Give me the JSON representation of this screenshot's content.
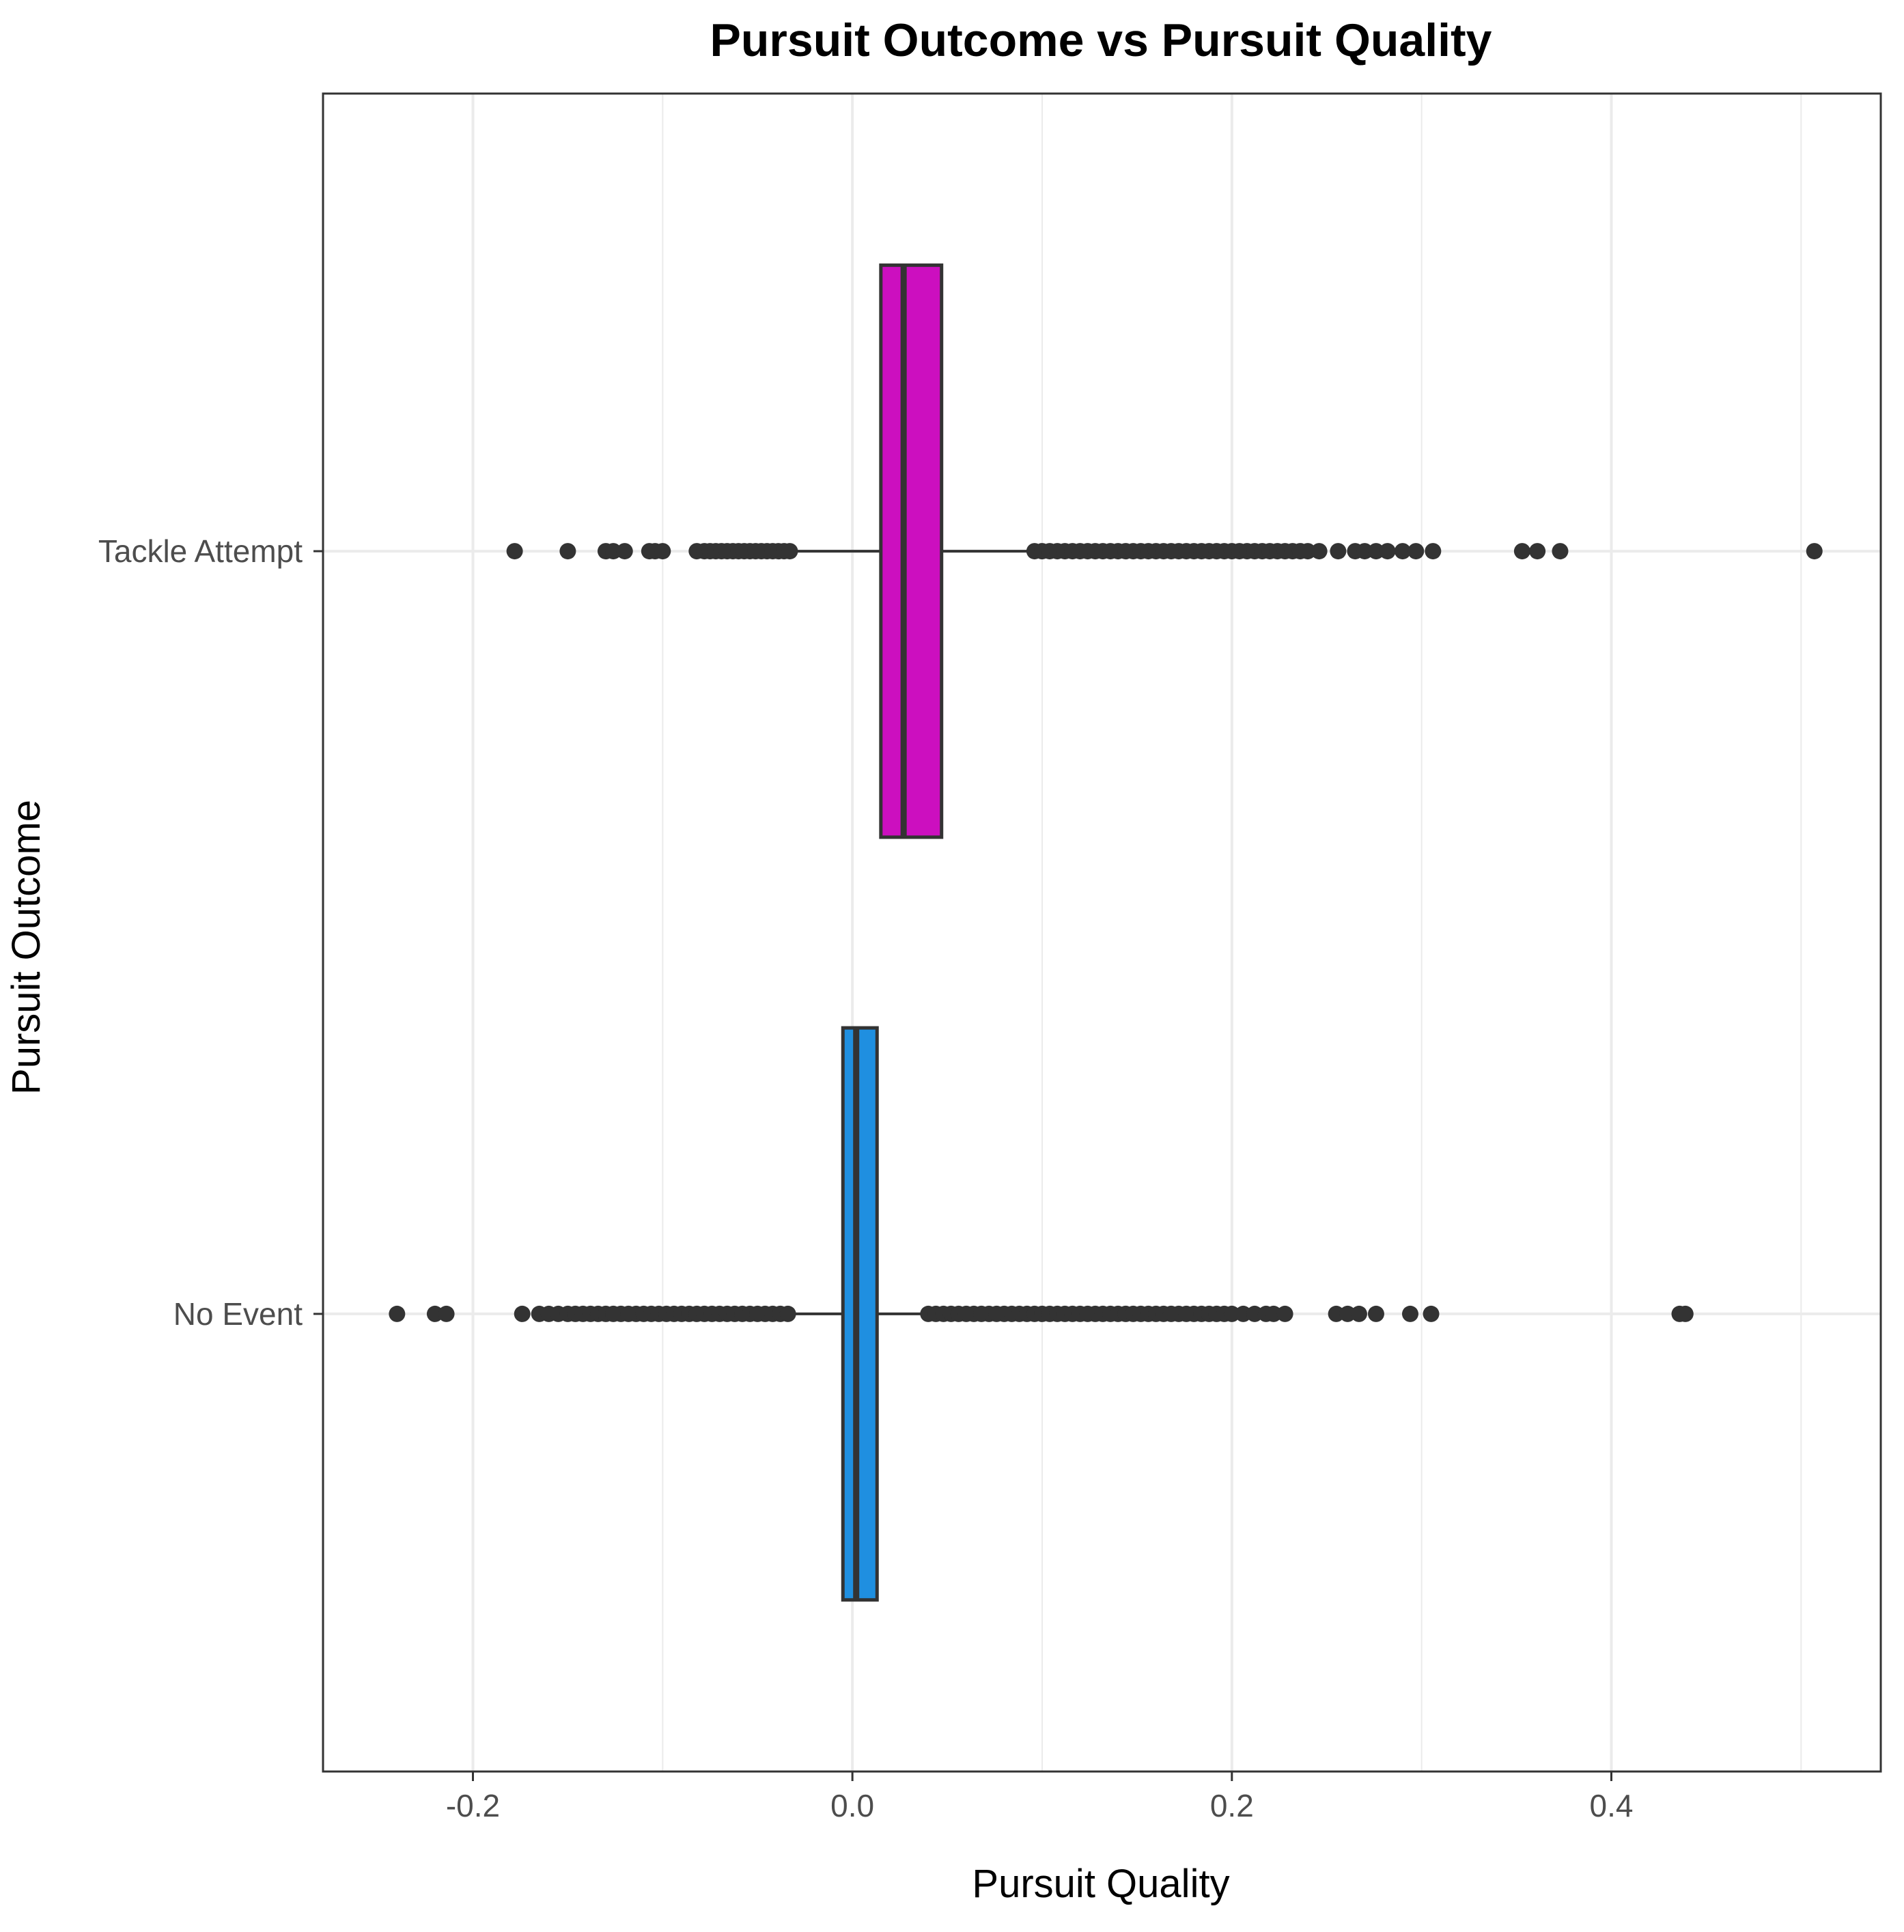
{
  "chart_data": {
    "type": "boxplot",
    "orientation": "horizontal",
    "title": "Pursuit Outcome vs Pursuit Quality",
    "xlabel": "Pursuit Quality",
    "ylabel": "Pursuit Outcome",
    "xlim": [
      -0.279,
      0.542
    ],
    "xticks": [
      -0.2,
      0.0,
      0.2,
      0.4
    ],
    "xtick_labels": [
      "-0.2",
      "0.0",
      "0.2",
      "0.4"
    ],
    "grid": true,
    "legend": "none",
    "categories": [
      "Tackle Attempt",
      "No Event"
    ],
    "series": [
      {
        "category": "Tackle Attempt",
        "color": "#CC0FBF",
        "q1": 0.015,
        "median": 0.027,
        "q3": 0.047,
        "whisker_low": -0.032,
        "whisker_high": 0.094,
        "outliers": [
          -0.178,
          -0.15,
          -0.13,
          -0.126,
          -0.12,
          -0.107,
          -0.104,
          -0.1,
          -0.082,
          -0.078,
          -0.075,
          -0.072,
          -0.069,
          -0.066,
          -0.063,
          -0.06,
          -0.057,
          -0.054,
          -0.051,
          -0.048,
          -0.045,
          -0.042,
          -0.039,
          -0.036,
          -0.033,
          0.096,
          0.1,
          0.104,
          0.108,
          0.112,
          0.116,
          0.12,
          0.124,
          0.128,
          0.132,
          0.136,
          0.14,
          0.144,
          0.148,
          0.152,
          0.156,
          0.16,
          0.164,
          0.168,
          0.172,
          0.176,
          0.18,
          0.184,
          0.188,
          0.192,
          0.196,
          0.2,
          0.204,
          0.208,
          0.212,
          0.216,
          0.22,
          0.224,
          0.228,
          0.232,
          0.236,
          0.24,
          0.246,
          0.256,
          0.265,
          0.27,
          0.276,
          0.282,
          0.29,
          0.297,
          0.306,
          0.353,
          0.361,
          0.373,
          0.507
        ]
      },
      {
        "category": "No Event",
        "color": "#1F8FE0",
        "q1": -0.005,
        "median": 0.002,
        "q3": 0.013,
        "whisker_low": -0.03,
        "whisker_high": 0.038,
        "outliers": [
          -0.24,
          -0.22,
          -0.214,
          -0.174,
          -0.165,
          -0.16,
          -0.155,
          -0.15,
          -0.146,
          -0.142,
          -0.138,
          -0.134,
          -0.13,
          -0.126,
          -0.122,
          -0.118,
          -0.114,
          -0.11,
          -0.106,
          -0.102,
          -0.098,
          -0.094,
          -0.09,
          -0.086,
          -0.082,
          -0.078,
          -0.074,
          -0.07,
          -0.066,
          -0.062,
          -0.058,
          -0.054,
          -0.05,
          -0.046,
          -0.042,
          -0.038,
          -0.034,
          0.04,
          0.044,
          0.048,
          0.052,
          0.056,
          0.06,
          0.064,
          0.068,
          0.072,
          0.076,
          0.08,
          0.084,
          0.088,
          0.092,
          0.096,
          0.1,
          0.104,
          0.108,
          0.112,
          0.116,
          0.12,
          0.124,
          0.128,
          0.132,
          0.136,
          0.14,
          0.144,
          0.148,
          0.152,
          0.156,
          0.16,
          0.164,
          0.168,
          0.172,
          0.176,
          0.18,
          0.184,
          0.188,
          0.192,
          0.196,
          0.2,
          0.206,
          0.212,
          0.218,
          0.222,
          0.228,
          0.255,
          0.261,
          0.267,
          0.276,
          0.294,
          0.305,
          0.436,
          0.439
        ]
      }
    ]
  }
}
